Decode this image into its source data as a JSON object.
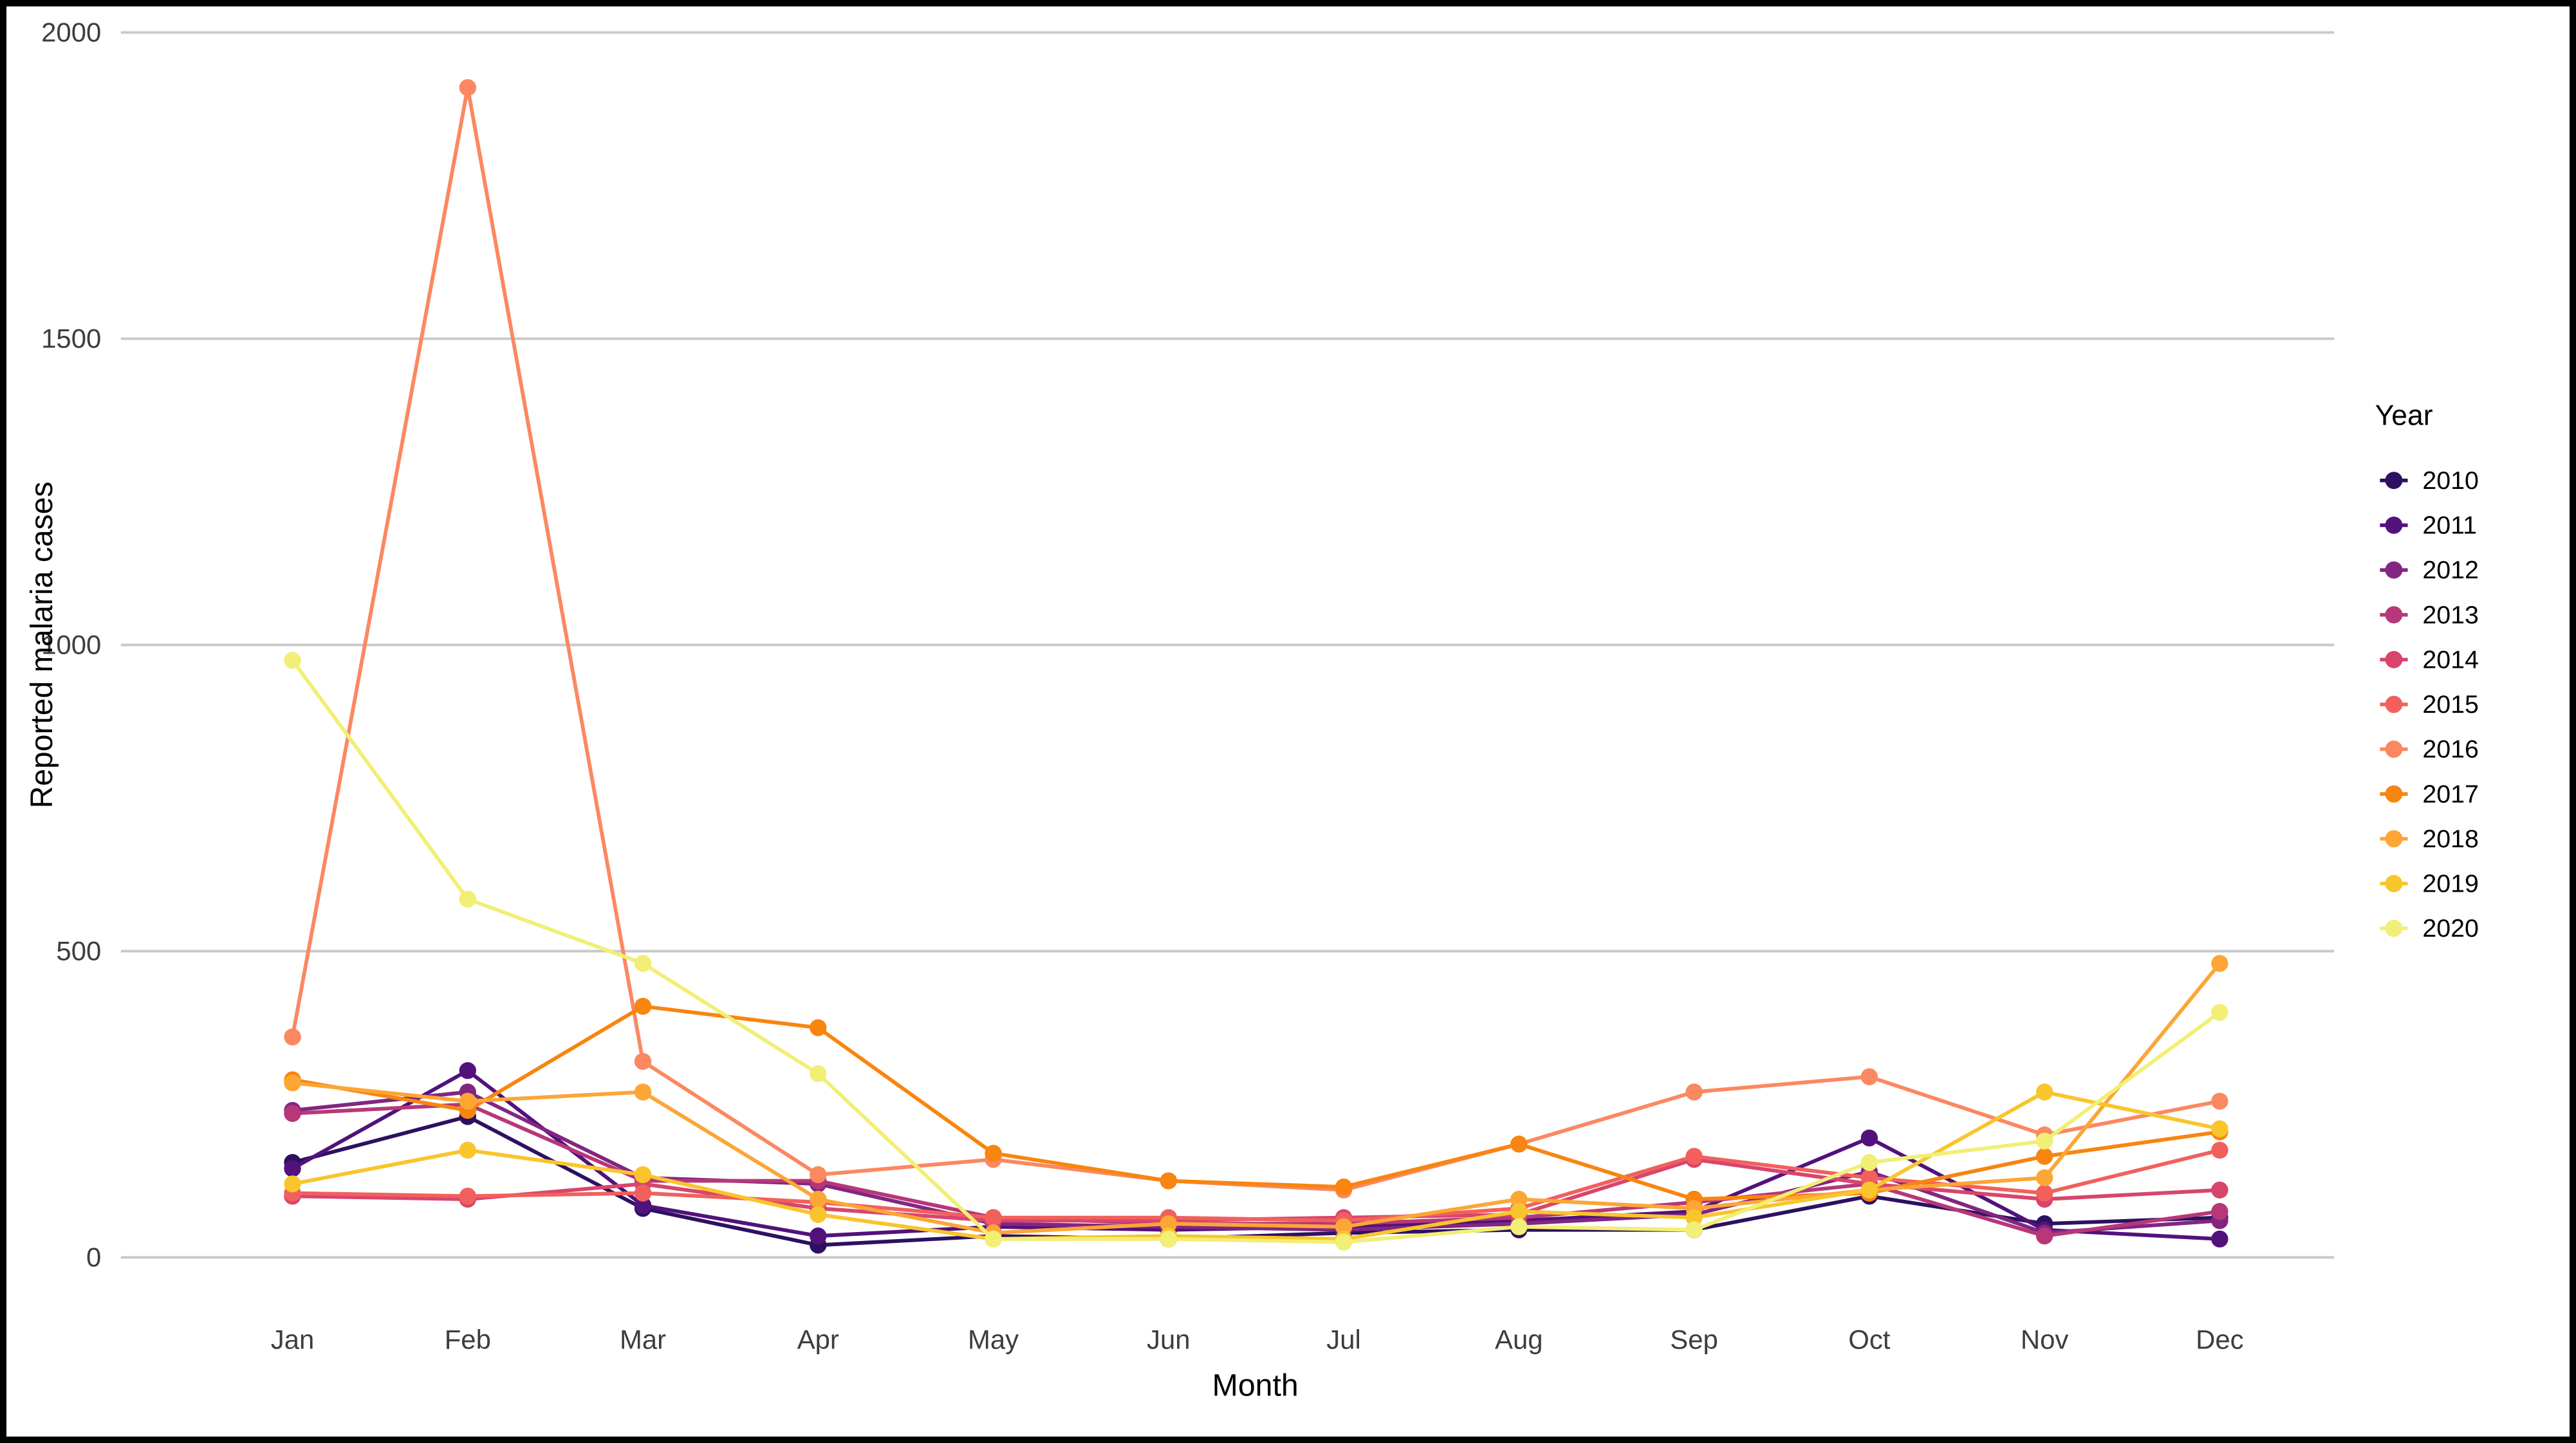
{
  "chart_data": {
    "type": "line",
    "title": "",
    "xlabel": "Month",
    "ylabel": "Reported malaria cases",
    "legend_title": "Year",
    "legend_position": "right",
    "grid": "horizontal-major",
    "background": "#ffffff",
    "gridline_color": "#c9c9c9",
    "ylim": [
      0,
      2000
    ],
    "y_ticks": [
      0,
      500,
      1000,
      1500,
      2000
    ],
    "categories": [
      "Jan",
      "Feb",
      "Mar",
      "Apr",
      "May",
      "Jun",
      "Jul",
      "Aug",
      "Sep",
      "Oct",
      "Nov",
      "Dec"
    ],
    "series": [
      {
        "name": "2010",
        "color": "#2d1160",
        "values": [
          155,
          230,
          80,
          20,
          35,
          30,
          40,
          45,
          45,
          100,
          55,
          65
        ]
      },
      {
        "name": "2011",
        "color": "#51127c",
        "values": [
          145,
          305,
          85,
          35,
          50,
          45,
          50,
          60,
          75,
          195,
          45,
          30
        ]
      },
      {
        "name": "2012",
        "color": "#822681",
        "values": [
          240,
          270,
          130,
          120,
          55,
          50,
          45,
          55,
          70,
          140,
          40,
          60
        ]
      },
      {
        "name": "2013",
        "color": "#b73779",
        "values": [
          235,
          250,
          125,
          125,
          65,
          55,
          55,
          65,
          90,
          120,
          35,
          75
        ]
      },
      {
        "name": "2014",
        "color": "#d8456c",
        "values": [
          100,
          95,
          120,
          80,
          60,
          60,
          65,
          70,
          160,
          120,
          95,
          110
        ]
      },
      {
        "name": "2015",
        "color": "#f1605d",
        "values": [
          105,
          100,
          105,
          90,
          65,
          65,
          60,
          80,
          165,
          130,
          105,
          175
        ]
      },
      {
        "name": "2016",
        "color": "#fb8861",
        "values": [
          360,
          1910,
          320,
          135,
          160,
          125,
          110,
          185,
          270,
          295,
          200,
          255
        ]
      },
      {
        "name": "2017",
        "color": "#f8850f",
        "values": [
          290,
          240,
          410,
          375,
          170,
          125,
          115,
          185,
          95,
          105,
          165,
          205
        ]
      },
      {
        "name": "2018",
        "color": "#fca636",
        "values": [
          285,
          255,
          270,
          95,
          40,
          55,
          50,
          95,
          80,
          110,
          130,
          480
        ]
      },
      {
        "name": "2019",
        "color": "#f9c52c",
        "values": [
          120,
          175,
          135,
          70,
          30,
          35,
          30,
          75,
          65,
          110,
          270,
          210
        ]
      },
      {
        "name": "2020",
        "color": "#f1ef75",
        "values": [
          975,
          585,
          480,
          300,
          30,
          30,
          25,
          50,
          45,
          155,
          190,
          400
        ]
      }
    ]
  }
}
